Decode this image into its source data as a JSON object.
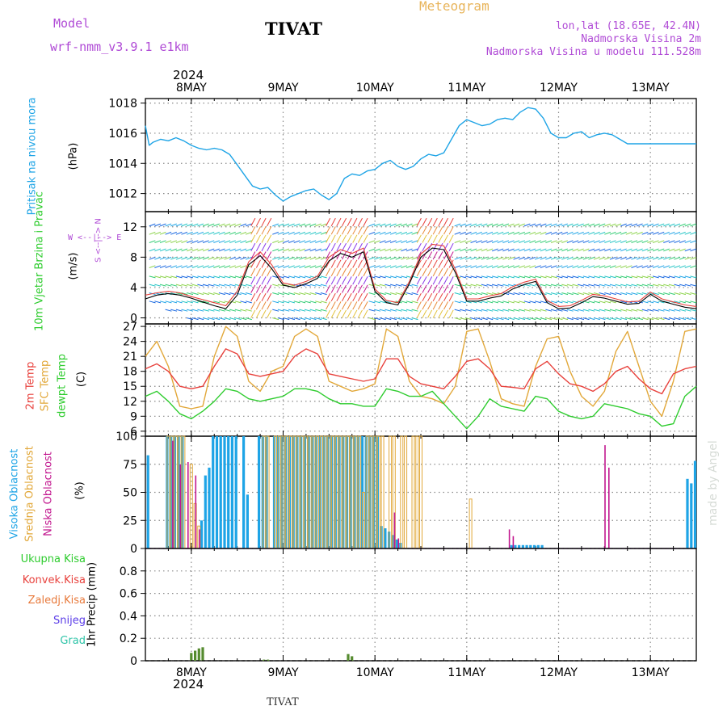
{
  "header": {
    "model_label": "Model",
    "model_name": "wrf-nmm_v3.9.1 e1km",
    "station": "TIVAT",
    "meteogram": "Meteogram",
    "lonlat": "lon,lat (18.65E, 42.4N)",
    "elevation": "Nadmorska Visina 2m",
    "model_elevation": "Nadmorska Visina u modelu 111.528m",
    "year": "2024",
    "first_day": "8MAY",
    "footer_station": "TIVAT",
    "watermark": "made by Angel"
  },
  "colors": {
    "pressure": "#1ea4e6",
    "temp2m": "#e8413c",
    "sfc": "#e2a83a",
    "dew": "#2ecc2e",
    "high_cloud": "#1ea4e6",
    "mid_cloud": "#e2a83a",
    "low_cloud": "#c2188f",
    "precip": "#558b2f"
  },
  "chart_data": [
    {
      "type": "line",
      "panel": "pressure",
      "title": "Pritisak na nivou mora",
      "ylabel": "(hPa)",
      "x_days": [
        "8MAY",
        "9MAY",
        "10MAY",
        "11MAY",
        "12MAY",
        "13MAY"
      ],
      "x_range_hours": [
        -12,
        132
      ],
      "ylim": [
        1010.8,
        1018.3
      ],
      "yticks": [
        1012,
        1014,
        1016,
        1018
      ],
      "series": [
        {
          "name": "Pritisak na nivou mora",
          "x_hours": [
            -12,
            -11,
            -10,
            -8,
            -6,
            -4,
            -2,
            0,
            2,
            4,
            6,
            8,
            10,
            12,
            14,
            16,
            18,
            20,
            22,
            24,
            26,
            28,
            30,
            32,
            34,
            36,
            38,
            40,
            42,
            44,
            46,
            48,
            50,
            52,
            54,
            56,
            58,
            60,
            62,
            64,
            66,
            68,
            70,
            72,
            74,
            76,
            78,
            80,
            82,
            84,
            86,
            88,
            90,
            92,
            94,
            96,
            98,
            100,
            102,
            104,
            106,
            108,
            110,
            112,
            114,
            116,
            118,
            120,
            122,
            124,
            126,
            128,
            130,
            132
          ],
          "values": [
            1016.5,
            1015.2,
            1015.4,
            1015.6,
            1015.5,
            1015.7,
            1015.5,
            1015.2,
            1015.0,
            1014.9,
            1015.0,
            1014.9,
            1014.6,
            1013.9,
            1013.2,
            1012.5,
            1012.3,
            1012.4,
            1011.9,
            1011.5,
            1011.8,
            1012.0,
            1012.2,
            1012.3,
            1011.9,
            1011.6,
            1012.0,
            1013.0,
            1013.3,
            1013.2,
            1013.5,
            1013.6,
            1014.0,
            1014.2,
            1013.8,
            1013.6,
            1013.8,
            1014.3,
            1014.6,
            1014.5,
            1014.7,
            1015.6,
            1016.5,
            1016.9,
            1016.7,
            1016.5,
            1016.6,
            1016.9,
            1017.0,
            1016.9,
            1017.4,
            1017.7,
            1017.6,
            1017.0,
            1016.0,
            1015.7,
            1015.7,
            1016.0,
            1016.1,
            1015.7,
            1015.9,
            1016.0,
            1015.9,
            1015.6,
            1015.3,
            1015.3,
            1015.3,
            1015.3,
            1015.3,
            1015.3,
            1015.3,
            1015.3,
            1015.3,
            1015.3
          ]
        }
      ]
    },
    {
      "type": "line",
      "panel": "wind",
      "title": "10m Vjetar Brzina i Pravac",
      "ylabel": "(m/s)",
      "direction_legend": "W <--|--> E",
      "direction_legend_v": "S <--|--> N",
      "ylim": [
        -0.8,
        14
      ],
      "yticks": [
        0,
        4,
        8,
        12
      ],
      "series": [
        {
          "name": "speed",
          "x_hours": [
            -12,
            -9,
            -6,
            -3,
            0,
            3,
            6,
            9,
            12,
            15,
            18,
            21,
            24,
            27,
            30,
            33,
            36,
            39,
            42,
            45,
            48,
            51,
            54,
            57,
            60,
            63,
            66,
            69,
            72,
            75,
            78,
            81,
            84,
            87,
            90,
            93,
            96,
            99,
            102,
            105,
            108,
            111,
            114,
            117,
            120,
            123,
            126,
            129,
            132
          ],
          "values": [
            2.5,
            3.0,
            3.2,
            3.0,
            2.6,
            2.1,
            1.6,
            1.2,
            3.0,
            7.0,
            8.2,
            6.5,
            4.3,
            4.0,
            4.5,
            5.2,
            7.5,
            8.5,
            8.0,
            8.7,
            3.5,
            2.0,
            1.7,
            4.5,
            8.0,
            9.2,
            9.0,
            6.0,
            2.2,
            2.2,
            2.6,
            2.9,
            3.8,
            4.4,
            4.8,
            2.0,
            1.2,
            1.3,
            2.0,
            2.8,
            2.6,
            2.2,
            1.8,
            1.9,
            3.1,
            2.2,
            1.8,
            1.4,
            1.2
          ]
        },
        {
          "name": "gust",
          "x_hours": [
            -12,
            -9,
            -6,
            -3,
            0,
            3,
            6,
            9,
            12,
            15,
            18,
            21,
            24,
            27,
            30,
            33,
            36,
            39,
            42,
            45,
            48,
            51,
            54,
            57,
            60,
            63,
            66,
            69,
            72,
            75,
            78,
            81,
            84,
            87,
            90,
            93,
            96,
            99,
            102,
            105,
            108,
            111,
            114,
            117,
            120,
            123,
            126,
            129,
            132
          ],
          "values": [
            3.0,
            3.3,
            3.5,
            3.3,
            2.8,
            2.4,
            2.0,
            1.6,
            3.5,
            7.4,
            8.7,
            7.0,
            4.6,
            4.3,
            4.8,
            5.5,
            8.0,
            9.0,
            8.5,
            9.2,
            3.8,
            2.3,
            2.0,
            4.8,
            8.4,
            9.7,
            9.5,
            6.4,
            2.5,
            2.5,
            2.9,
            3.2,
            4.1,
            4.7,
            5.1,
            2.3,
            1.5,
            1.6,
            2.3,
            3.1,
            2.9,
            2.5,
            2.1,
            2.2,
            3.4,
            2.5,
            2.1,
            1.7,
            1.5
          ]
        }
      ]
    },
    {
      "type": "line",
      "panel": "temperature",
      "ylabel": "(C)",
      "ylim": [
        5,
        27.5
      ],
      "yticks": [
        6,
        9,
        12,
        15,
        18,
        21,
        24,
        27
      ],
      "series": [
        {
          "name": "2m Temp",
          "x_hours": [
            -12,
            -9,
            -6,
            -3,
            0,
            3,
            6,
            9,
            12,
            15,
            18,
            21,
            24,
            27,
            30,
            33,
            36,
            39,
            42,
            45,
            48,
            51,
            54,
            57,
            60,
            63,
            66,
            69,
            72,
            75,
            78,
            81,
            84,
            87,
            90,
            93,
            96,
            99,
            102,
            105,
            108,
            111,
            114,
            117,
            120,
            123,
            126,
            129,
            132
          ],
          "values": [
            18.5,
            19.5,
            18.0,
            15.0,
            14.5,
            15.0,
            19.0,
            22.5,
            21.5,
            17.5,
            17.0,
            17.5,
            18.0,
            21.0,
            22.5,
            21.5,
            17.5,
            17.0,
            16.5,
            16.0,
            16.5,
            20.5,
            20.5,
            17.0,
            15.5,
            15.0,
            14.5,
            17.0,
            20.0,
            20.5,
            18.5,
            15.0,
            14.8,
            14.5,
            18.5,
            20.0,
            17.5,
            15.5,
            15.0,
            14.0,
            15.5,
            18.0,
            19.0,
            16.5,
            14.5,
            13.5,
            17.5,
            18.5,
            19.0
          ]
        },
        {
          "name": "SFC Temp",
          "x_hours": [
            -12,
            -9,
            -6,
            -3,
            0,
            3,
            6,
            9,
            12,
            15,
            18,
            21,
            24,
            27,
            30,
            33,
            36,
            39,
            42,
            45,
            48,
            51,
            54,
            57,
            60,
            63,
            66,
            69,
            72,
            75,
            78,
            81,
            84,
            87,
            90,
            93,
            96,
            99,
            102,
            105,
            108,
            111,
            114,
            117,
            120,
            123,
            126,
            129,
            132
          ],
          "values": [
            21.0,
            24.0,
            19.0,
            11.0,
            10.5,
            11.0,
            21.0,
            27.0,
            25.0,
            16.0,
            14.0,
            18.0,
            19.0,
            25.0,
            26.5,
            25.0,
            16.0,
            15.0,
            14.0,
            14.5,
            15.5,
            26.5,
            25.0,
            16.0,
            13.0,
            12.5,
            11.5,
            15.0,
            26.0,
            26.5,
            20.0,
            12.5,
            11.5,
            11.0,
            19.0,
            24.5,
            25.0,
            18.0,
            13.0,
            11.0,
            14.0,
            22.0,
            26.0,
            19.0,
            12.0,
            9.0,
            16.0,
            26.0,
            26.5
          ]
        },
        {
          "name": "dewpt Temp",
          "x_hours": [
            -12,
            -9,
            -6,
            -3,
            0,
            3,
            6,
            9,
            12,
            15,
            18,
            21,
            24,
            27,
            30,
            33,
            36,
            39,
            42,
            45,
            48,
            51,
            54,
            57,
            60,
            63,
            66,
            69,
            72,
            75,
            78,
            81,
            84,
            87,
            90,
            93,
            96,
            99,
            102,
            105,
            108,
            111,
            114,
            117,
            120,
            123,
            126,
            129,
            132
          ],
          "values": [
            13.0,
            14.0,
            12.0,
            9.5,
            8.5,
            10.0,
            12.0,
            14.5,
            14.0,
            12.5,
            12.0,
            12.5,
            13.0,
            14.5,
            14.5,
            14.0,
            12.5,
            11.5,
            11.5,
            11.0,
            11.0,
            14.5,
            14.0,
            13.0,
            13.0,
            14.0,
            11.5,
            9.0,
            6.5,
            9.0,
            12.5,
            11.0,
            10.5,
            10.0,
            13.0,
            12.5,
            10.0,
            9.0,
            8.5,
            9.0,
            11.5,
            11.0,
            10.5,
            9.5,
            9.0,
            7.0,
            7.5,
            13.0,
            15.0
          ]
        }
      ]
    },
    {
      "type": "bar",
      "panel": "clouds",
      "ylabel": "(%)",
      "ylim": [
        0,
        100
      ],
      "yticks": [
        0,
        25,
        50,
        75,
        100
      ],
      "series": [
        {
          "name": "Visoka Oblacnost",
          "x_hours": [
            -11,
            -6,
            -5,
            -4,
            -3,
            -2,
            3,
            4,
            5,
            6,
            7,
            8,
            9,
            10,
            11,
            12,
            14,
            15,
            18,
            19,
            20,
            22,
            23,
            24,
            25,
            26,
            27,
            28,
            29,
            30,
            31,
            32,
            33,
            34,
            35,
            36,
            37,
            38,
            39,
            40,
            41,
            42,
            43,
            44,
            45,
            46,
            47,
            48,
            49,
            50,
            51,
            52,
            53,
            54,
            55,
            84,
            85,
            86,
            87,
            88,
            89,
            90,
            91,
            92,
            130,
            131,
            132
          ],
          "values": [
            83,
            100,
            100,
            100,
            100,
            100,
            25,
            65,
            72,
            100,
            100,
            100,
            100,
            100,
            100,
            100,
            100,
            48,
            100,
            100,
            100,
            100,
            100,
            100,
            100,
            100,
            100,
            100,
            100,
            100,
            100,
            100,
            100,
            100,
            100,
            100,
            100,
            100,
            100,
            100,
            100,
            100,
            100,
            100,
            100,
            100,
            100,
            100,
            100,
            20,
            18,
            15,
            12,
            8,
            5,
            3,
            3,
            3,
            3,
            3,
            3,
            3,
            3,
            3,
            62,
            58,
            78
          ]
        },
        {
          "name": "Srednja Oblacnost",
          "x_hours": [
            -6,
            -5,
            -4,
            -3,
            -2,
            0,
            1,
            2,
            19,
            20,
            22,
            23,
            24,
            25,
            26,
            27,
            28,
            29,
            30,
            31,
            32,
            33,
            34,
            35,
            36,
            37,
            38,
            39,
            40,
            41,
            42,
            43,
            44,
            45,
            46,
            47,
            48,
            49,
            50,
            52,
            53,
            55,
            56,
            58,
            59,
            60,
            73
          ],
          "values": [
            100,
            100,
            100,
            100,
            100,
            75,
            40,
            20,
            100,
            100,
            100,
            100,
            100,
            100,
            100,
            100,
            100,
            100,
            100,
            100,
            100,
            100,
            100,
            100,
            100,
            100,
            100,
            100,
            100,
            100,
            100,
            100,
            100,
            50,
            100,
            100,
            100,
            100,
            100,
            100,
            100,
            100,
            100,
            100,
            100,
            100,
            44
          ]
        },
        {
          "name": "Niska Oblacnost",
          "x_hours": [
            -5,
            -3,
            -1,
            1,
            2,
            53,
            54,
            83,
            84,
            108,
            109
          ],
          "values": [
            96,
            75,
            77,
            65,
            17,
            32,
            9,
            17,
            11,
            92,
            72
          ]
        }
      ]
    },
    {
      "type": "bar",
      "panel": "precip",
      "ylabel": "1hr Precip (mm)",
      "ylim": [
        0,
        1.0
      ],
      "yticks": [
        0,
        0.2,
        0.4,
        0.6,
        0.8
      ],
      "legend": [
        "Ukupna Kisa",
        "Konvek.Kisa",
        "Zaledj.Kisa",
        "Snijeg",
        "Grad"
      ],
      "series": [
        {
          "name": "Ukupna Kisa",
          "x_hours": [
            0,
            1,
            2,
            3,
            19,
            20,
            41,
            42
          ],
          "values": [
            0.07,
            0.09,
            0.11,
            0.12,
            0.01,
            0.01,
            0.06,
            0.04
          ]
        }
      ]
    }
  ]
}
